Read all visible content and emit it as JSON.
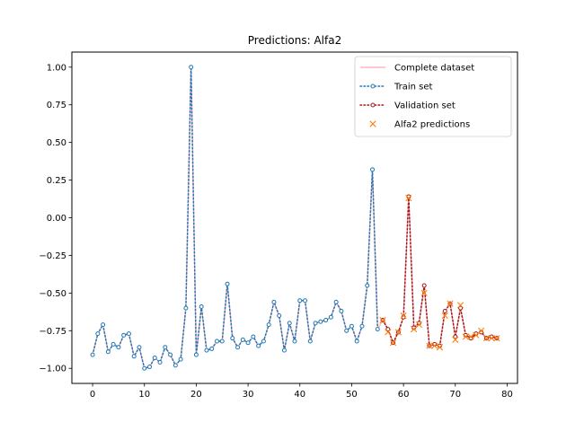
{
  "chart_data": {
    "type": "line",
    "title": "Predictions: Alfa2",
    "xlabel": "",
    "ylabel": "",
    "xlim": [
      -4,
      82
    ],
    "ylim": [
      -1.1,
      1.1
    ],
    "xticks": [
      0,
      10,
      20,
      30,
      40,
      50,
      60,
      70,
      80
    ],
    "yticks": [
      -1.0,
      -0.75,
      -0.5,
      -0.25,
      0.0,
      0.25,
      0.5,
      0.75,
      1.0
    ],
    "xtick_labels": [
      "0",
      "10",
      "20",
      "30",
      "40",
      "50",
      "60",
      "70",
      "80"
    ],
    "ytick_labels": [
      "−1.00",
      "−0.75",
      "−0.50",
      "−0.25",
      "0.00",
      "0.25",
      "0.50",
      "0.75",
      "1.00"
    ],
    "grid": false,
    "legend_position": "top-right",
    "series": [
      {
        "name": "Complete dataset",
        "style": "solid-line",
        "color": "#ffb6c1",
        "x": [
          0,
          1,
          2,
          3,
          4,
          5,
          6,
          7,
          8,
          9,
          10,
          11,
          12,
          13,
          14,
          15,
          16,
          17,
          18,
          19,
          20,
          21,
          22,
          23,
          24,
          25,
          26,
          27,
          28,
          29,
          30,
          31,
          32,
          33,
          34,
          35,
          36,
          37,
          38,
          39,
          40,
          41,
          42,
          43,
          44,
          45,
          46,
          47,
          48,
          49,
          50,
          51,
          52,
          53,
          54,
          55,
          56,
          57,
          58,
          59,
          60,
          61,
          62,
          63,
          64,
          65,
          66,
          67,
          68,
          69,
          70,
          71,
          72,
          73,
          74,
          75,
          76,
          77,
          78
        ],
        "y": [
          -0.91,
          -0.77,
          -0.71,
          -0.89,
          -0.84,
          -0.86,
          -0.78,
          -0.77,
          -0.92,
          -0.86,
          -1.0,
          -0.99,
          -0.93,
          -0.96,
          -0.86,
          -0.91,
          -0.98,
          -0.94,
          -0.6,
          1.0,
          -0.91,
          -0.59,
          -0.88,
          -0.87,
          -0.82,
          -0.82,
          -0.44,
          -0.8,
          -0.86,
          -0.81,
          -0.83,
          -0.79,
          -0.85,
          -0.82,
          -0.71,
          -0.56,
          -0.65,
          -0.88,
          -0.7,
          -0.82,
          -0.55,
          -0.55,
          -0.82,
          -0.7,
          -0.69,
          -0.68,
          -0.66,
          -0.56,
          -0.62,
          -0.75,
          -0.72,
          -0.82,
          -0.72,
          -0.45,
          0.32,
          -0.74,
          -0.68,
          -0.74,
          -0.83,
          -0.76,
          -0.66,
          0.14,
          -0.73,
          -0.7,
          -0.45,
          -0.85,
          -0.84,
          -0.85,
          -0.62,
          -0.57,
          -0.79,
          -0.6,
          -0.78,
          -0.8,
          -0.77,
          -0.76,
          -0.8,
          -0.79,
          -0.8
        ]
      },
      {
        "name": "Train set",
        "style": "dotted-line-with-circles",
        "color": "#1f77b4",
        "x": [
          0,
          1,
          2,
          3,
          4,
          5,
          6,
          7,
          8,
          9,
          10,
          11,
          12,
          13,
          14,
          15,
          16,
          17,
          18,
          19,
          20,
          21,
          22,
          23,
          24,
          25,
          26,
          27,
          28,
          29,
          30,
          31,
          32,
          33,
          34,
          35,
          36,
          37,
          38,
          39,
          40,
          41,
          42,
          43,
          44,
          45,
          46,
          47,
          48,
          49,
          50,
          51,
          52,
          53,
          54,
          55
        ],
        "y": [
          -0.91,
          -0.77,
          -0.71,
          -0.89,
          -0.84,
          -0.86,
          -0.78,
          -0.77,
          -0.92,
          -0.86,
          -1.0,
          -0.99,
          -0.93,
          -0.96,
          -0.86,
          -0.91,
          -0.98,
          -0.94,
          -0.6,
          1.0,
          -0.91,
          -0.59,
          -0.88,
          -0.87,
          -0.82,
          -0.82,
          -0.44,
          -0.8,
          -0.86,
          -0.81,
          -0.83,
          -0.79,
          -0.85,
          -0.82,
          -0.71,
          -0.56,
          -0.65,
          -0.88,
          -0.7,
          -0.82,
          -0.55,
          -0.55,
          -0.82,
          -0.7,
          -0.69,
          -0.68,
          -0.66,
          -0.56,
          -0.62,
          -0.75,
          -0.72,
          -0.82,
          -0.72,
          -0.45,
          0.32,
          -0.74
        ]
      },
      {
        "name": "Validation set",
        "style": "dotted-line-with-circles",
        "color": "#a11a1a",
        "x": [
          56,
          57,
          58,
          59,
          60,
          61,
          62,
          63,
          64,
          65,
          66,
          67,
          68,
          69,
          70,
          71,
          72,
          73,
          74,
          75,
          76,
          77,
          78
        ],
        "y": [
          -0.68,
          -0.74,
          -0.83,
          -0.76,
          -0.66,
          0.14,
          -0.73,
          -0.7,
          -0.45,
          -0.85,
          -0.84,
          -0.85,
          -0.62,
          -0.57,
          -0.79,
          -0.6,
          -0.78,
          -0.8,
          -0.77,
          -0.76,
          -0.8,
          -0.79,
          -0.8
        ]
      },
      {
        "name": "Alfa2 predictions",
        "style": "x-markers",
        "color": "#ff7f0e",
        "x": [
          56,
          57,
          58,
          59,
          60,
          61,
          62,
          63,
          64,
          65,
          66,
          67,
          68,
          69,
          70,
          71,
          72,
          73,
          74,
          75,
          76,
          77,
          78
        ],
        "y": [
          -0.68,
          -0.76,
          -0.83,
          -0.76,
          -0.65,
          0.13,
          -0.74,
          -0.71,
          -0.5,
          -0.85,
          -0.85,
          -0.86,
          -0.65,
          -0.57,
          -0.81,
          -0.58,
          -0.79,
          -0.79,
          -0.78,
          -0.75,
          -0.8,
          -0.8,
          -0.8
        ]
      }
    ]
  }
}
